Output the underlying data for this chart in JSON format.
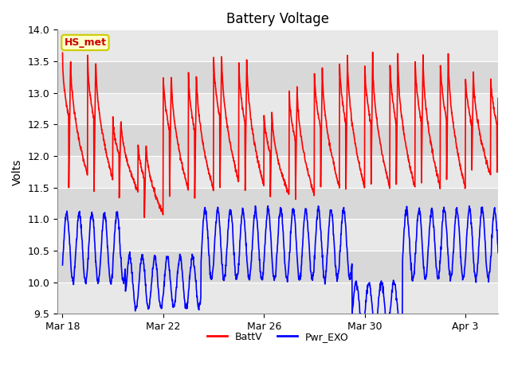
{
  "title": "Battery Voltage",
  "ylabel": "Volts",
  "ylim": [
    9.5,
    14.0
  ],
  "yticks": [
    9.5,
    10.0,
    10.5,
    11.0,
    11.5,
    12.0,
    12.5,
    13.0,
    13.5,
    14.0
  ],
  "xlabel_ticks": [
    "Mar 18",
    "Mar 22",
    "Mar 26",
    "Mar 30",
    "Apr 3"
  ],
  "xtick_positions": [
    0,
    4,
    8,
    12,
    16
  ],
  "xlim": [
    -0.2,
    17.3
  ],
  "bg_color": "#ffffff",
  "plot_bg_color": "#f0f0f0",
  "band_colors": [
    "#e8e8e8",
    "#d8d8d8"
  ],
  "grid_color": "#ffffff",
  "legend_items": [
    {
      "label": "BattV",
      "color": "#ff0000"
    },
    {
      "label": "Pwr_EXO",
      "color": "#0000ff"
    }
  ],
  "annotation_text": "HS_met",
  "annotation_bg": "#ffffcc",
  "annotation_border": "#cccc00",
  "annotation_text_color": "#cc0000",
  "title_fontsize": 12,
  "axis_fontsize": 10,
  "tick_fontsize": 9,
  "line_width": 1.2
}
